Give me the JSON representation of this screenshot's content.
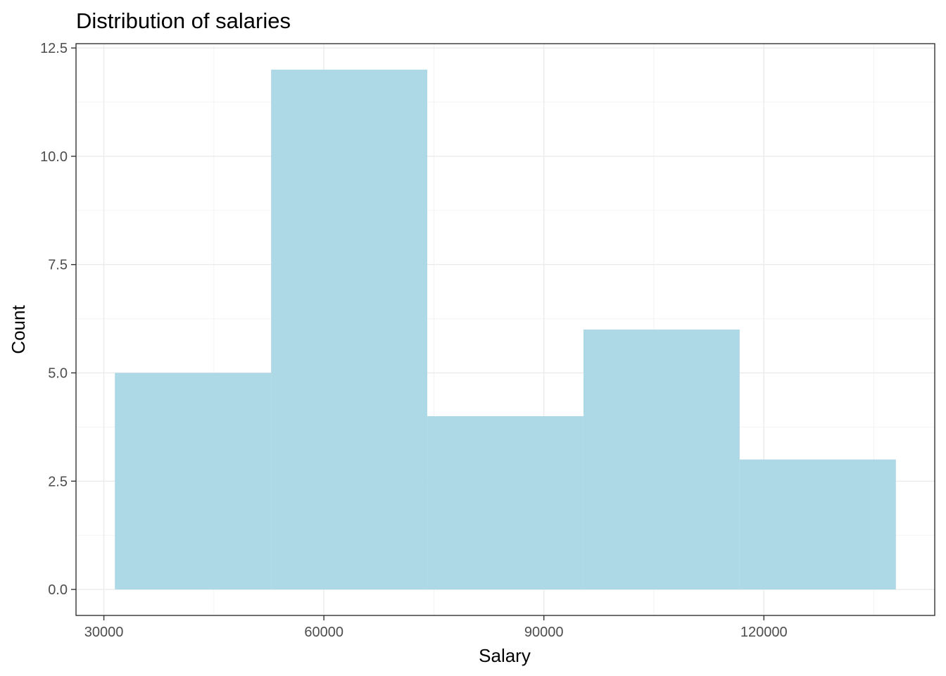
{
  "chart_data": {
    "type": "bar",
    "title": "Distribution of salaries",
    "xlabel": "Salary",
    "ylabel": "Count",
    "bins": [
      {
        "x0": 31500,
        "x1": 52800,
        "count": 5
      },
      {
        "x0": 52800,
        "x1": 74100,
        "count": 12
      },
      {
        "x0": 74100,
        "x1": 95400,
        "count": 4
      },
      {
        "x0": 95400,
        "x1": 116700,
        "count": 6
      },
      {
        "x0": 116700,
        "x1": 138000,
        "count": 3
      }
    ],
    "xlim": [
      26200,
      143300
    ],
    "ylim": [
      -0.6,
      12.6
    ],
    "x_ticks": [
      30000,
      60000,
      90000,
      120000
    ],
    "x_tick_labels": [
      "30000",
      "60000",
      "90000",
      "120000"
    ],
    "y_ticks": [
      0,
      2.5,
      5,
      7.5,
      10,
      12.5
    ],
    "y_tick_labels": [
      "0.0",
      "2.5",
      "5.0",
      "7.5",
      "10.0",
      "12.5"
    ],
    "grid": true,
    "bar_color": "#add8e6"
  }
}
